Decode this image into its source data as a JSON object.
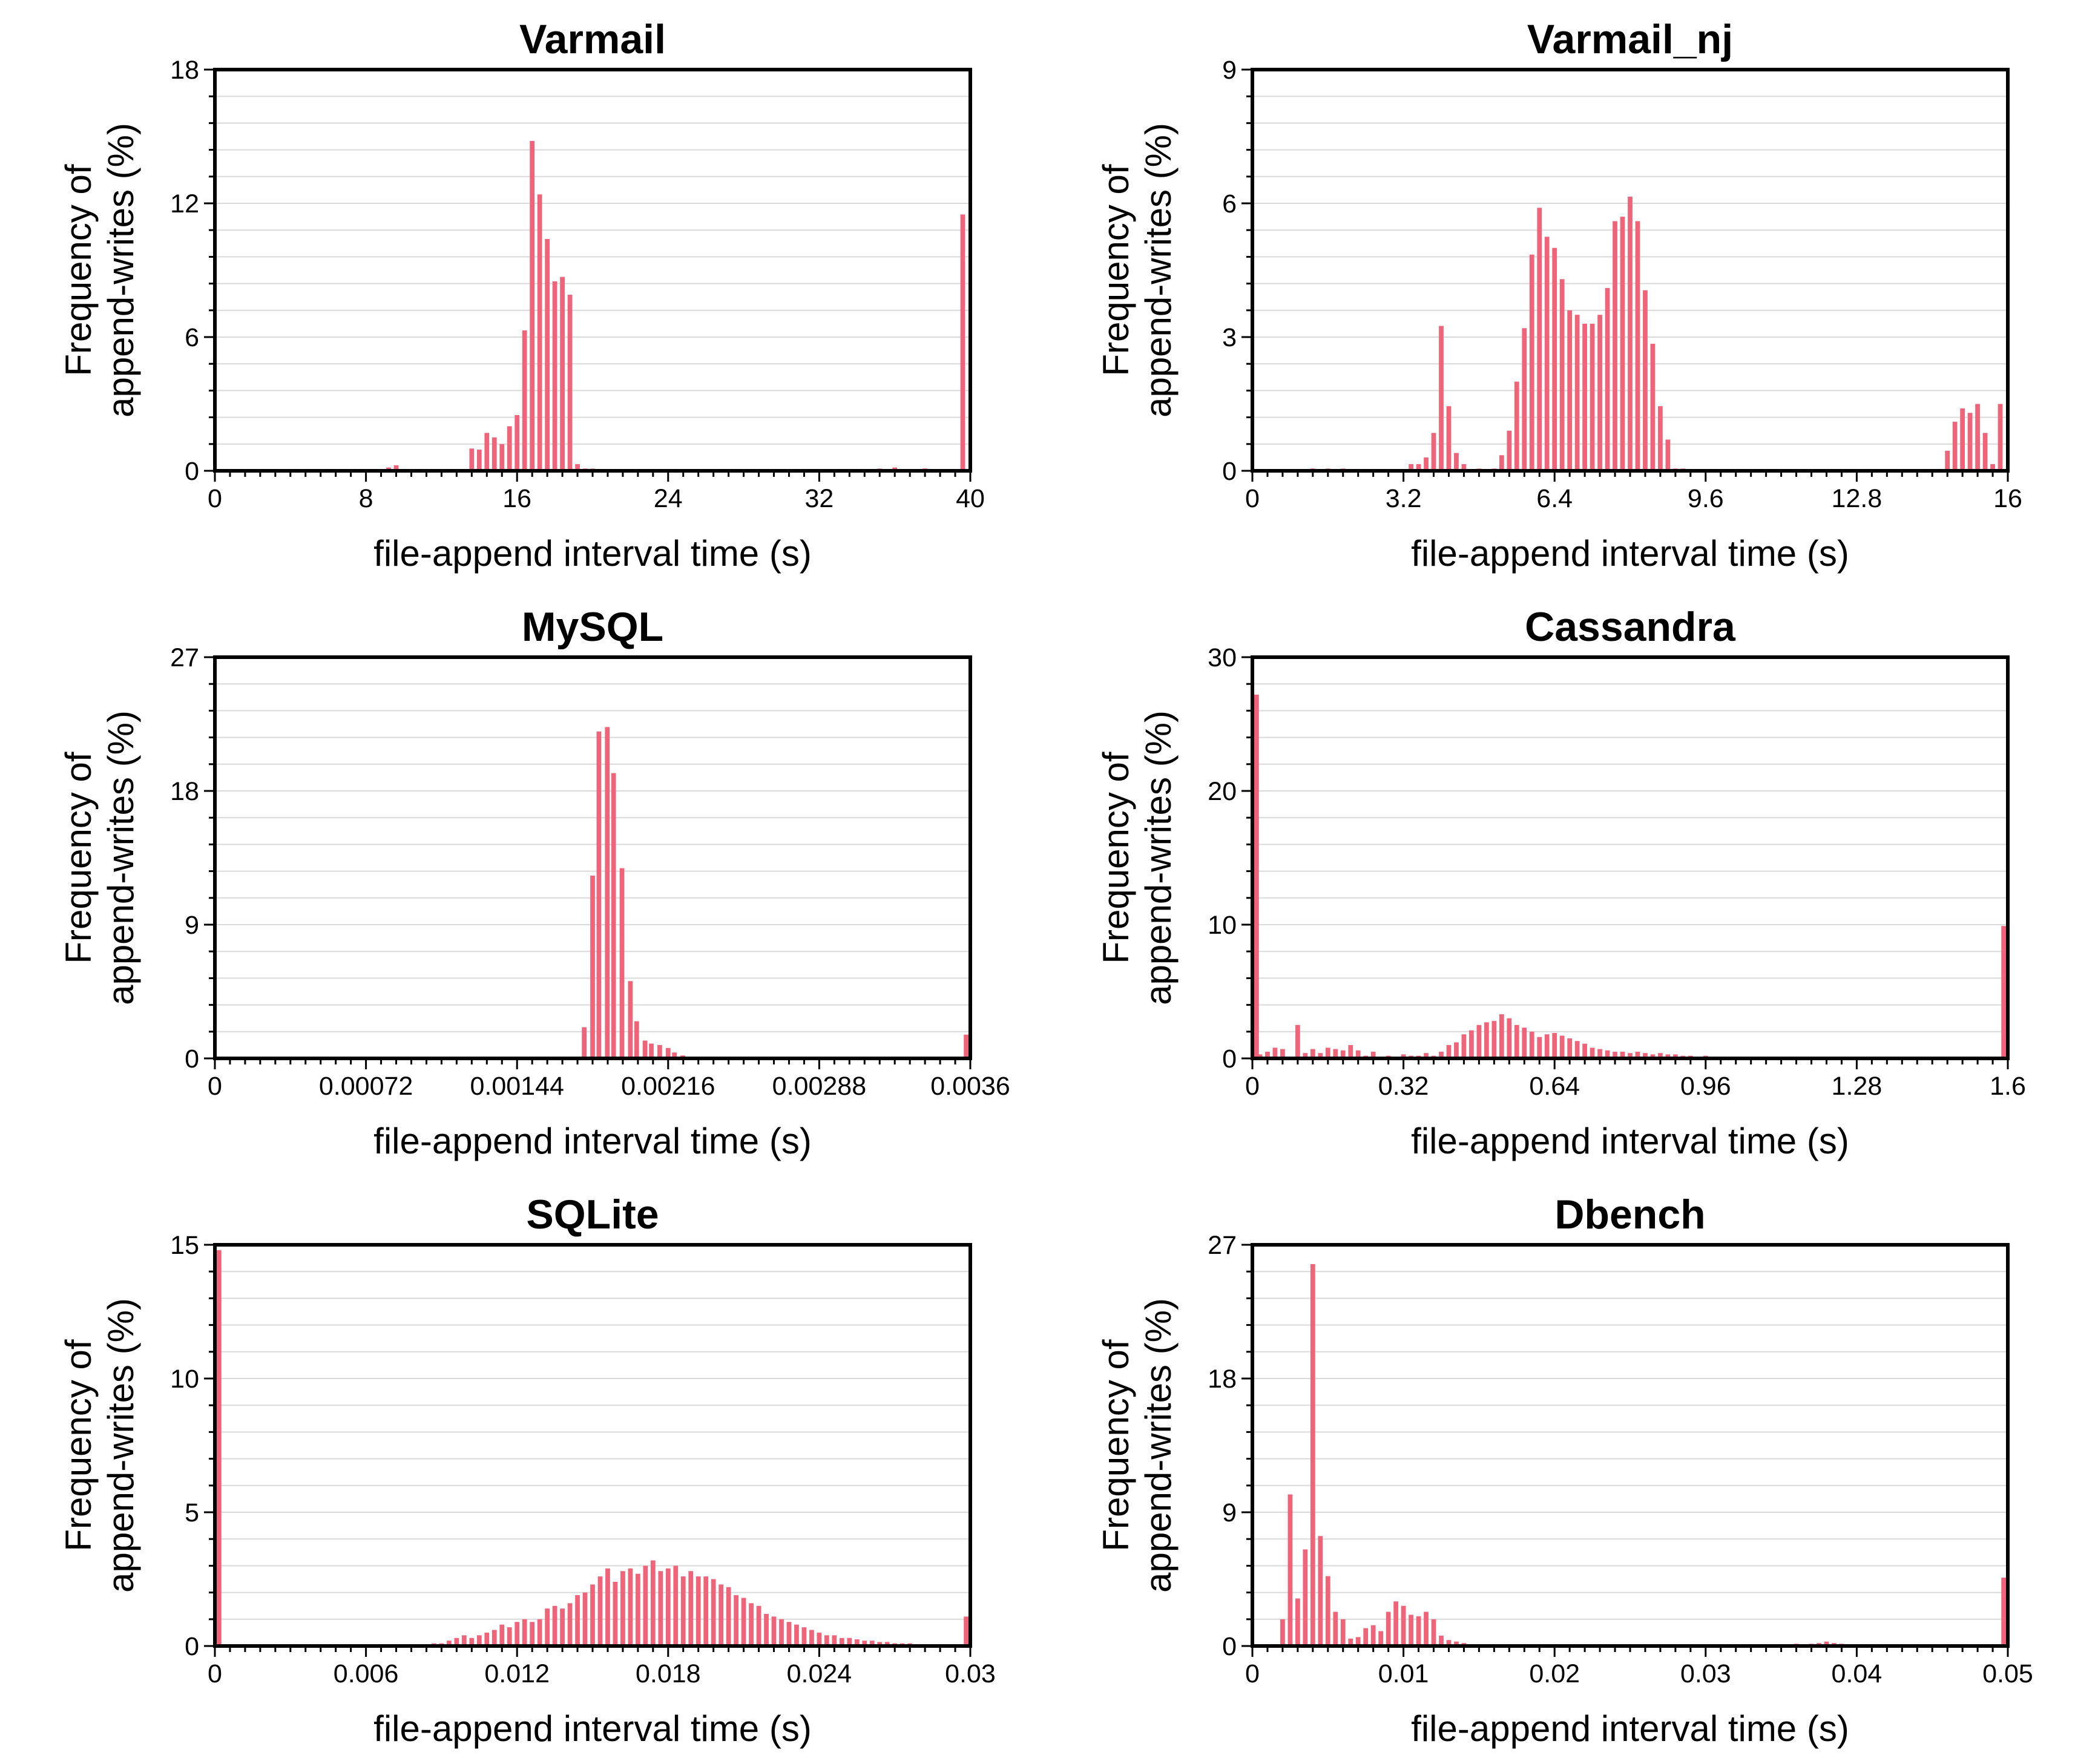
{
  "colors": {
    "bar": "#f0647a",
    "grid": "#d9d9d9",
    "axis": "#000000",
    "background": "#ffffff"
  },
  "chart_data": [
    {
      "type": "bar",
      "title": "Varmail",
      "xlabel": "file-append interval time (s)",
      "ylabel_line1": "Frequency of",
      "ylabel_line2": "append-writes (%)",
      "xlim": [
        0,
        40
      ],
      "ylim": [
        0,
        18
      ],
      "xticks": [
        "0",
        "8",
        "16",
        "24",
        "32",
        "40"
      ],
      "yticks": [
        "0",
        "6",
        "12",
        "18"
      ],
      "bin_width": 0.4,
      "x": [
        9.2,
        9.6,
        13.6,
        14.0,
        14.4,
        14.8,
        15.2,
        15.6,
        16.0,
        16.4,
        16.8,
        17.2,
        17.6,
        18.0,
        18.4,
        18.8,
        19.2,
        19.6,
        20.0,
        35.2,
        36.0,
        37.6,
        39.6
      ],
      "values": [
        0.15,
        0.25,
        1.0,
        0.95,
        1.7,
        1.5,
        1.2,
        2.0,
        2.5,
        6.3,
        14.8,
        12.4,
        10.4,
        8.5,
        8.7,
        7.9,
        0.3,
        0.1,
        0.1,
        0.1,
        0.15,
        0.1,
        11.5
      ]
    },
    {
      "type": "bar",
      "title": "Varmail_nj",
      "xlabel": "file-append interval time (s)",
      "ylabel_line1": "Frequency of",
      "ylabel_line2": "append-writes (%)",
      "xlim": [
        0,
        16
      ],
      "ylim": [
        0,
        9
      ],
      "xticks": [
        "0",
        "3.2",
        "6.4",
        "9.6",
        "12.8",
        "16"
      ],
      "yticks": [
        "0",
        "3",
        "6",
        "9"
      ],
      "bin_width": 0.16,
      "x": [
        1.28,
        1.6,
        1.92,
        3.36,
        3.52,
        3.68,
        3.84,
        4.0,
        4.16,
        4.32,
        4.48,
        4.8,
        5.12,
        5.28,
        5.44,
        5.6,
        5.76,
        5.92,
        6.08,
        6.24,
        6.4,
        6.56,
        6.72,
        6.88,
        7.04,
        7.2,
        7.36,
        7.52,
        7.68,
        7.84,
        8.0,
        8.16,
        8.32,
        8.48,
        8.64,
        8.8,
        8.96,
        9.12,
        14.72,
        14.88,
        15.04,
        15.2,
        15.36,
        15.52,
        15.68,
        15.84
      ],
      "values": [
        0.05,
        0.05,
        0.05,
        0.15,
        0.15,
        0.3,
        0.85,
        3.25,
        1.45,
        0.4,
        0.15,
        0.05,
        0.05,
        0.35,
        0.9,
        2.0,
        3.2,
        4.85,
        5.9,
        5.25,
        5.0,
        4.3,
        3.6,
        3.5,
        3.3,
        3.3,
        3.5,
        4.1,
        5.6,
        5.7,
        6.15,
        5.6,
        4.05,
        2.85,
        1.45,
        0.7,
        0.05,
        0.05,
        0.45,
        1.1,
        1.4,
        1.3,
        1.5,
        0.85,
        0.15,
        1.5
      ]
    },
    {
      "type": "bar",
      "title": "MySQL",
      "xlabel": "file-append interval time (s)",
      "ylabel_line1": "Frequency of",
      "ylabel_line2": "append-writes (%)",
      "xlim": [
        0,
        0.0036
      ],
      "ylim": [
        0,
        27
      ],
      "xticks": [
        "0",
        "0.00072",
        "0.00144",
        "0.00216",
        "0.00288",
        "0.0036"
      ],
      "yticks": [
        "0",
        "9",
        "18",
        "27"
      ],
      "bin_width": 3.6e-05,
      "x": [
        0.00176,
        0.0018,
        0.00183,
        0.00187,
        0.0019,
        0.00194,
        0.00198,
        0.00201,
        0.00205,
        0.00208,
        0.00212,
        0.00216,
        0.00219,
        0.00223,
        0.00226,
        0.0023,
        0.0036
      ],
      "values": [
        2.1,
        12.3,
        22.0,
        22.3,
        19.2,
        12.8,
        5.2,
        2.5,
        1.2,
        1.0,
        0.9,
        0.7,
        0.4,
        0.2,
        0.1,
        0.05,
        1.6
      ]
    },
    {
      "type": "bar",
      "title": "Cassandra",
      "xlabel": "file-append interval time (s)",
      "ylabel_line1": "Frequency of",
      "ylabel_line2": "append-writes (%)",
      "xlim": [
        0,
        1.6
      ],
      "ylim": [
        0,
        30
      ],
      "xticks": [
        "0",
        "0.32",
        "0.64",
        "0.96",
        "1.28",
        "1.6"
      ],
      "yticks": [
        "0",
        "10",
        "20",
        "30"
      ],
      "bin_width": 0.016,
      "x": [
        0.0,
        0.016,
        0.032,
        0.048,
        0.064,
        0.08,
        0.096,
        0.112,
        0.128,
        0.144,
        0.16,
        0.176,
        0.192,
        0.208,
        0.224,
        0.24,
        0.256,
        0.272,
        0.288,
        0.304,
        0.32,
        0.336,
        0.352,
        0.368,
        0.384,
        0.4,
        0.416,
        0.432,
        0.448,
        0.464,
        0.48,
        0.496,
        0.512,
        0.528,
        0.544,
        0.56,
        0.576,
        0.592,
        0.608,
        0.624,
        0.64,
        0.656,
        0.672,
        0.688,
        0.704,
        0.72,
        0.736,
        0.752,
        0.768,
        0.784,
        0.8,
        0.816,
        0.832,
        0.848,
        0.864,
        0.88,
        0.896,
        0.912,
        0.928,
        0.944,
        0.96,
        0.976,
        0.992,
        1.008,
        1.04,
        1.072,
        1.12,
        1.2,
        1.344,
        1.44,
        1.6
      ],
      "values": [
        27.2,
        0.3,
        0.5,
        0.8,
        0.7,
        0.1,
        2.5,
        0.4,
        0.7,
        0.4,
        0.8,
        0.7,
        0.6,
        1.0,
        0.6,
        0.2,
        0.5,
        0.1,
        0.2,
        0.1,
        0.3,
        0.2,
        0.2,
        0.4,
        0.2,
        0.5,
        1.0,
        1.2,
        1.8,
        2.1,
        2.5,
        2.7,
        2.8,
        3.3,
        3.0,
        2.5,
        2.3,
        2.0,
        1.6,
        1.8,
        1.9,
        1.7,
        1.5,
        1.3,
        1.1,
        0.8,
        0.7,
        0.6,
        0.5,
        0.5,
        0.4,
        0.5,
        0.4,
        0.3,
        0.4,
        0.3,
        0.3,
        0.2,
        0.2,
        0.1,
        0.2,
        0.1,
        0.1,
        0.1,
        0.05,
        0.05,
        0.1,
        0.05,
        0.1,
        0.05,
        9.9
      ]
    },
    {
      "type": "bar",
      "title": "SQLite",
      "xlabel": "file-append interval time (s)",
      "ylabel_line1": "Frequency of",
      "ylabel_line2": "append-writes (%)",
      "xlim": [
        0,
        0.03
      ],
      "ylim": [
        0,
        15
      ],
      "xticks": [
        "0",
        "0.006",
        "0.012",
        "0.018",
        "0.024",
        "0.03"
      ],
      "yticks": [
        "0",
        "5",
        "10",
        "15"
      ],
      "bin_width": 0.0003,
      "x": [
        0.0,
        0.0084,
        0.0087,
        0.009,
        0.0093,
        0.0096,
        0.0099,
        0.0102,
        0.0105,
        0.0108,
        0.0111,
        0.0114,
        0.0117,
        0.012,
        0.0123,
        0.0126,
        0.0129,
        0.0132,
        0.0135,
        0.0138,
        0.0141,
        0.0144,
        0.0147,
        0.015,
        0.0153,
        0.0156,
        0.0159,
        0.0162,
        0.0165,
        0.0168,
        0.0171,
        0.0174,
        0.0177,
        0.018,
        0.0183,
        0.0186,
        0.0189,
        0.0192,
        0.0195,
        0.0198,
        0.0201,
        0.0204,
        0.0207,
        0.021,
        0.0213,
        0.0216,
        0.0219,
        0.0222,
        0.0225,
        0.0228,
        0.0231,
        0.0234,
        0.0237,
        0.024,
        0.0243,
        0.0246,
        0.0249,
        0.0252,
        0.0255,
        0.0258,
        0.0261,
        0.0264,
        0.0267,
        0.027,
        0.0273,
        0.0276,
        0.0279,
        0.0282,
        0.0285,
        0.03
      ],
      "values": [
        14.8,
        0.05,
        0.1,
        0.1,
        0.2,
        0.3,
        0.4,
        0.3,
        0.4,
        0.5,
        0.6,
        0.8,
        0.7,
        0.9,
        1.0,
        0.9,
        1.0,
        1.4,
        1.5,
        1.4,
        1.6,
        1.9,
        2.0,
        2.3,
        2.6,
        2.9,
        2.4,
        2.8,
        2.9,
        2.7,
        3.0,
        3.2,
        2.8,
        2.9,
        3.0,
        2.6,
        2.8,
        2.6,
        2.6,
        2.5,
        2.3,
        2.2,
        1.9,
        1.8,
        1.6,
        1.5,
        1.2,
        1.1,
        1.0,
        0.9,
        0.8,
        0.7,
        0.6,
        0.5,
        0.4,
        0.4,
        0.3,
        0.3,
        0.25,
        0.2,
        0.2,
        0.15,
        0.15,
        0.1,
        0.1,
        0.1,
        0.05,
        0.05,
        0.05,
        1.1
      ]
    },
    {
      "type": "bar",
      "title": "Dbench",
      "xlabel": "file-append interval time (s)",
      "ylabel_line1": "Frequency of",
      "ylabel_line2": "append-writes (%)",
      "xlim": [
        0,
        0.05
      ],
      "ylim": [
        0,
        27
      ],
      "xticks": [
        "0",
        "0.01",
        "0.02",
        "0.03",
        "0.04",
        "0.05"
      ],
      "yticks": [
        "0",
        "9",
        "18",
        "27"
      ],
      "bin_width": 0.0005,
      "x": [
        0.002,
        0.0025,
        0.003,
        0.0035,
        0.004,
        0.0045,
        0.005,
        0.0055,
        0.006,
        0.0065,
        0.007,
        0.0075,
        0.008,
        0.0085,
        0.009,
        0.0095,
        0.01,
        0.0105,
        0.011,
        0.0115,
        0.012,
        0.0125,
        0.013,
        0.0135,
        0.014,
        0.015,
        0.016,
        0.03,
        0.031,
        0.032,
        0.033,
        0.034,
        0.035,
        0.036,
        0.037,
        0.0375,
        0.038,
        0.0385,
        0.039,
        0.05
      ],
      "values": [
        1.8,
        10.2,
        3.2,
        6.5,
        25.7,
        7.4,
        4.7,
        2.3,
        1.8,
        0.5,
        0.6,
        1.2,
        1.4,
        1.0,
        2.3,
        3.0,
        2.7,
        2.1,
        2.0,
        2.3,
        1.8,
        0.7,
        0.4,
        0.3,
        0.2,
        0.1,
        0.05,
        0.05,
        0.05,
        0.05,
        0.1,
        0.1,
        0.1,
        0.15,
        0.15,
        0.2,
        0.3,
        0.2,
        0.15,
        4.6
      ]
    }
  ]
}
